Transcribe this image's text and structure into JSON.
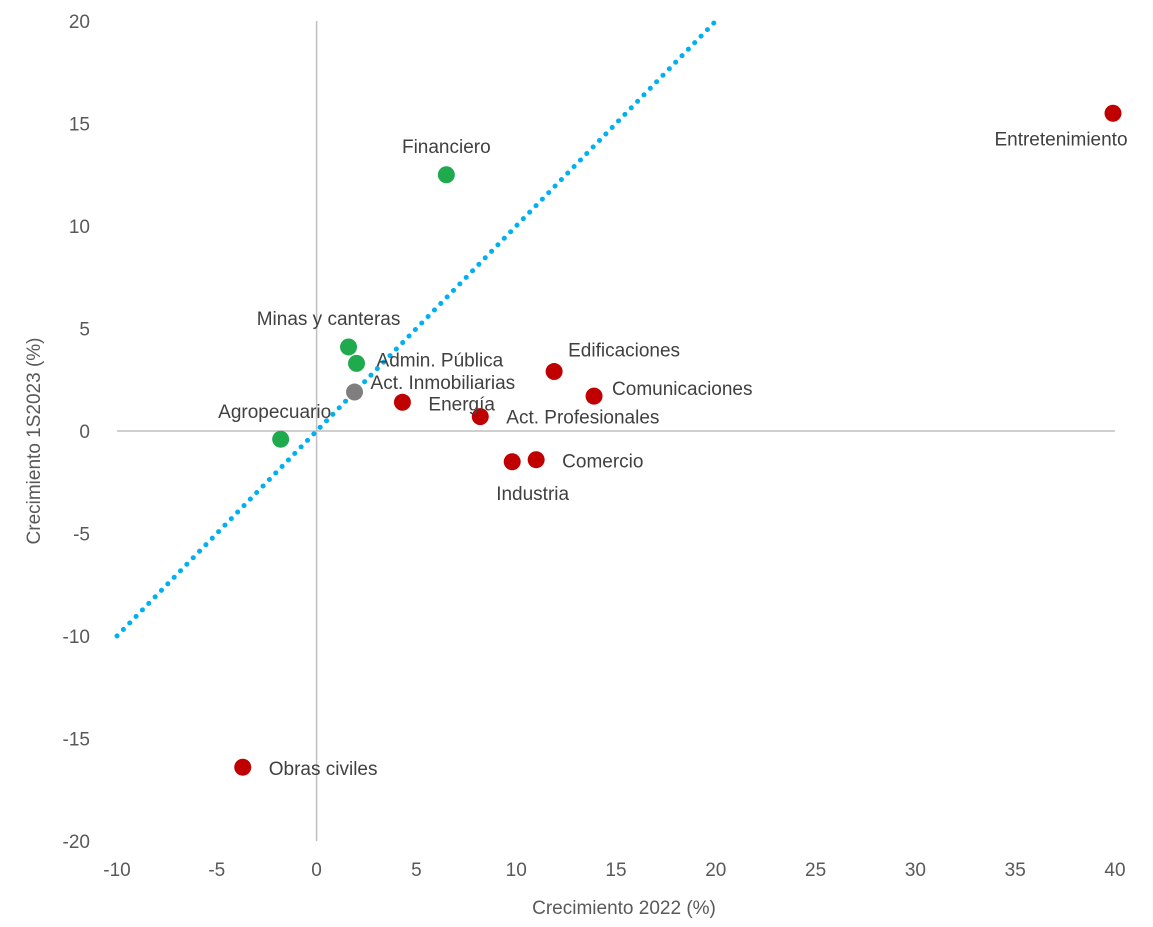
{
  "chart_data": {
    "type": "scatter",
    "title": "",
    "xlabel": "Crecimiento 2022 (%)",
    "ylabel": "Crecimiento 1S2023 (%)",
    "xlim": [
      -10,
      40
    ],
    "ylim": [
      -20,
      20
    ],
    "x_ticks": [
      "-10",
      "-5",
      "0",
      "5",
      "10",
      "15",
      "20",
      "25",
      "30",
      "35",
      "40"
    ],
    "y_ticks": [
      "20",
      "15",
      "10",
      "5",
      "0",
      "-5",
      "-10",
      "-15",
      "-20"
    ],
    "grid": false,
    "legend": "none",
    "colors": {
      "green": "#1faa4d",
      "red": "#c00000",
      "gray": "#7f7f7f",
      "trend": "#00b0f0",
      "axis": "#bfbfbf"
    },
    "trendline": {
      "style": "dotted",
      "x": [
        -10,
        20
      ],
      "y": [
        -10,
        20
      ]
    },
    "points": [
      {
        "label": "Financiero",
        "x": 6.5,
        "y": 12.5,
        "color": "green"
      },
      {
        "label": "Minas y canteras",
        "x": 1.6,
        "y": 4.1,
        "color": "green"
      },
      {
        "label": "Admin. Pública",
        "x": 2.0,
        "y": 3.3,
        "color": "green"
      },
      {
        "label": "Act. Inmobiliarias",
        "x": 1.9,
        "y": 1.9,
        "color": "gray"
      },
      {
        "label": "Agropecuario",
        "x": -1.8,
        "y": -0.4,
        "color": "green"
      },
      {
        "label": "Energía",
        "x": 4.3,
        "y": 1.4,
        "color": "red"
      },
      {
        "label": "Act. Profesionales",
        "x": 8.2,
        "y": 0.7,
        "color": "red"
      },
      {
        "label": "Edificaciones",
        "x": 11.9,
        "y": 2.9,
        "color": "red"
      },
      {
        "label": "Comunicaciones",
        "x": 13.9,
        "y": 1.7,
        "color": "red"
      },
      {
        "label": "Comercio",
        "x": 11.0,
        "y": -1.4,
        "color": "red"
      },
      {
        "label": "Industria",
        "x": 9.8,
        "y": -1.5,
        "color": "red"
      },
      {
        "label": "Entretenimiento",
        "x": 39.9,
        "y": 15.5,
        "color": "red"
      },
      {
        "label": "Obras civiles",
        "x": -3.7,
        "y": -16.4,
        "color": "red"
      }
    ]
  }
}
